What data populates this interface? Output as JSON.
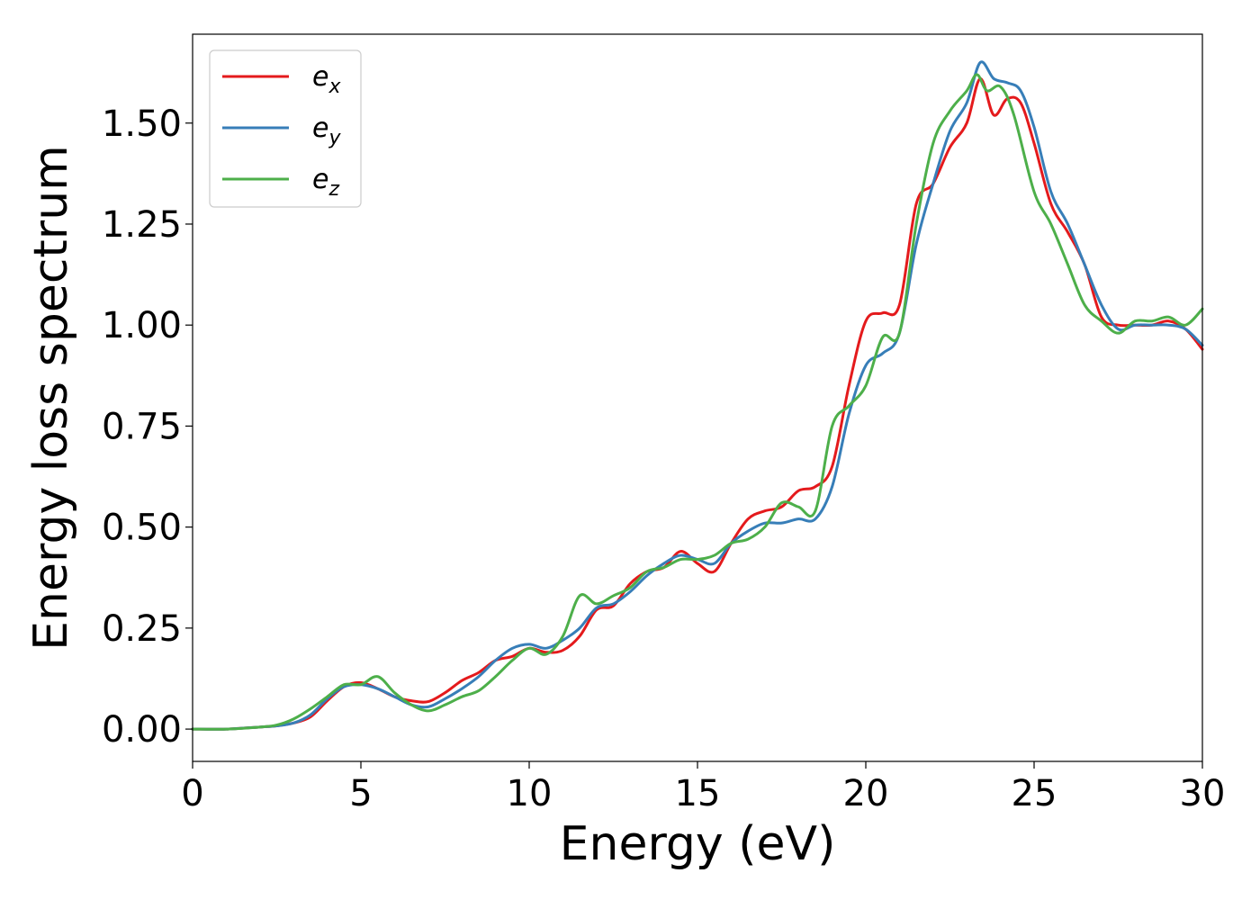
{
  "chart_data": {
    "type": "line",
    "xlabel": "Energy (eV)",
    "ylabel": "Energy loss spectrum",
    "xlim": [
      0,
      30
    ],
    "ylim": [
      -0.08,
      1.72
    ],
    "xticks": [
      0,
      5,
      10,
      15,
      20,
      25,
      30
    ],
    "xtick_labels": [
      "0",
      "5",
      "10",
      "15",
      "20",
      "25",
      "30"
    ],
    "yticks": [
      0.0,
      0.25,
      0.5,
      0.75,
      1.0,
      1.25,
      1.5
    ],
    "ytick_labels": [
      "0.00",
      "0.25",
      "0.50",
      "0.75",
      "1.00",
      "1.25",
      "1.50"
    ],
    "grid": false,
    "legend_position": "top-left",
    "series": [
      {
        "name": "e_x",
        "label_base": "e",
        "label_sub": "x",
        "color": "#e41a1c",
        "x": [
          0,
          1,
          2,
          2.5,
          3,
          3.5,
          4,
          4.5,
          5,
          5.5,
          6,
          6.5,
          7,
          7.5,
          8,
          8.5,
          9,
          9.5,
          10,
          10.5,
          11,
          11.5,
          12,
          12.5,
          13,
          13.5,
          14,
          14.5,
          15,
          15.5,
          16,
          16.5,
          17,
          17.5,
          18,
          18.5,
          19,
          19.5,
          20,
          20.5,
          21,
          21.5,
          22,
          22.5,
          23,
          23.4,
          23.8,
          24.2,
          24.6,
          25,
          25.5,
          26,
          26.5,
          27,
          27.5,
          28,
          28.5,
          29,
          29.5,
          30
        ],
        "y": [
          0.0,
          0.0,
          0.005,
          0.008,
          0.015,
          0.03,
          0.07,
          0.105,
          0.115,
          0.1,
          0.08,
          0.07,
          0.068,
          0.09,
          0.12,
          0.14,
          0.17,
          0.18,
          0.2,
          0.19,
          0.195,
          0.23,
          0.295,
          0.305,
          0.36,
          0.39,
          0.4,
          0.44,
          0.41,
          0.39,
          0.46,
          0.52,
          0.54,
          0.55,
          0.59,
          0.6,
          0.65,
          0.85,
          1.01,
          1.03,
          1.05,
          1.3,
          1.35,
          1.44,
          1.5,
          1.61,
          1.52,
          1.56,
          1.55,
          1.45,
          1.3,
          1.23,
          1.15,
          1.02,
          1.0,
          1.0,
          1.0,
          1.01,
          0.99,
          0.94
        ]
      },
      {
        "name": "e_y",
        "label_base": "e",
        "label_sub": "y",
        "color": "#377eb8",
        "x": [
          0,
          1,
          2,
          2.5,
          3,
          3.5,
          4,
          4.5,
          5,
          5.5,
          6,
          6.5,
          7,
          7.5,
          8,
          8.5,
          9,
          9.5,
          10,
          10.5,
          11,
          11.5,
          12,
          12.5,
          13,
          13.5,
          14,
          14.5,
          15,
          15.5,
          16,
          16.5,
          17,
          17.5,
          18,
          18.5,
          19,
          19.5,
          20,
          20.5,
          21,
          21.5,
          22,
          22.5,
          23,
          23.4,
          23.8,
          24.2,
          24.6,
          25,
          25.5,
          26,
          26.5,
          27,
          27.5,
          28,
          28.5,
          29,
          29.5,
          30
        ],
        "y": [
          0.0,
          0.0,
          0.005,
          0.008,
          0.015,
          0.035,
          0.075,
          0.105,
          0.11,
          0.1,
          0.08,
          0.06,
          0.055,
          0.075,
          0.1,
          0.13,
          0.17,
          0.2,
          0.21,
          0.2,
          0.22,
          0.25,
          0.3,
          0.31,
          0.34,
          0.38,
          0.41,
          0.43,
          0.42,
          0.41,
          0.46,
          0.49,
          0.51,
          0.51,
          0.52,
          0.52,
          0.6,
          0.78,
          0.9,
          0.93,
          0.98,
          1.2,
          1.35,
          1.48,
          1.55,
          1.65,
          1.61,
          1.6,
          1.58,
          1.49,
          1.33,
          1.25,
          1.15,
          1.05,
          0.99,
          1.0,
          1.0,
          1.0,
          0.99,
          0.95
        ]
      },
      {
        "name": "e_z",
        "label_base": "e",
        "label_sub": "z",
        "color": "#4daf4a",
        "x": [
          0,
          1,
          2,
          2.5,
          3,
          3.5,
          4,
          4.5,
          5,
          5.5,
          6,
          6.5,
          7,
          7.5,
          8,
          8.5,
          9,
          9.5,
          10,
          10.5,
          11,
          11.5,
          12,
          12.5,
          13,
          13.5,
          14,
          14.5,
          15,
          15.5,
          16,
          16.5,
          17,
          17.5,
          18,
          18.5,
          19,
          19.5,
          20,
          20.5,
          21,
          21.5,
          22,
          22.5,
          23,
          23.3,
          23.6,
          24,
          24.4,
          25,
          25.5,
          26,
          26.5,
          27,
          27.5,
          28,
          28.5,
          29,
          29.5,
          30
        ],
        "y": [
          0.0,
          0.0,
          0.005,
          0.01,
          0.025,
          0.05,
          0.08,
          0.11,
          0.11,
          0.13,
          0.09,
          0.06,
          0.045,
          0.06,
          0.08,
          0.095,
          0.13,
          0.17,
          0.2,
          0.185,
          0.23,
          0.33,
          0.31,
          0.33,
          0.35,
          0.39,
          0.4,
          0.42,
          0.42,
          0.43,
          0.46,
          0.47,
          0.5,
          0.56,
          0.55,
          0.54,
          0.75,
          0.8,
          0.85,
          0.97,
          0.98,
          1.25,
          1.45,
          1.53,
          1.58,
          1.62,
          1.58,
          1.59,
          1.52,
          1.33,
          1.25,
          1.15,
          1.05,
          1.01,
          0.98,
          1.01,
          1.01,
          1.02,
          1.0,
          1.04
        ]
      }
    ]
  }
}
